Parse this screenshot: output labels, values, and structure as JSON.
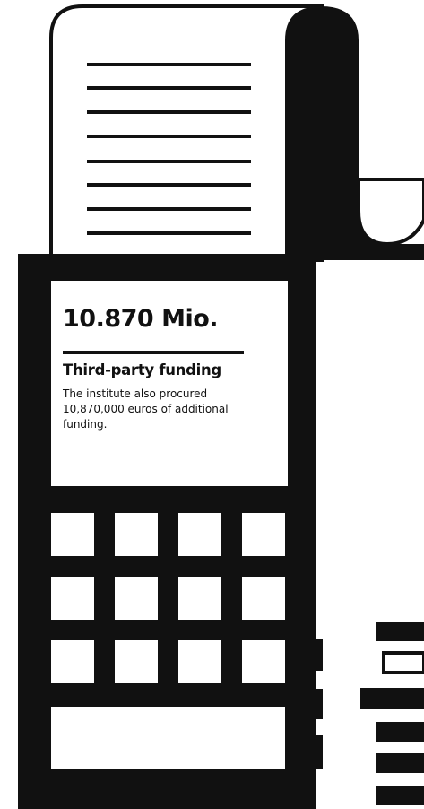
{
  "figure": {
    "value": "10.870 Mio.",
    "label": "Third-party funding",
    "description": "The institute also procured 10,870,000 euros of additional funding."
  }
}
